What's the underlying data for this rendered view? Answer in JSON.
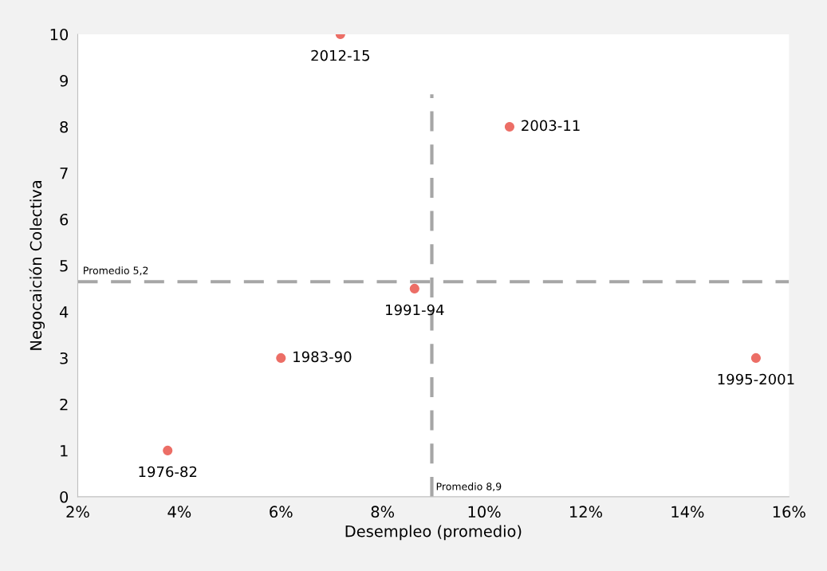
{
  "chart_data": {
    "type": "scatter",
    "xlabel": "Desempleo (promedio)",
    "ylabel": "Negocaición Colectiva",
    "x": [
      3.77,
      6.0,
      8.63,
      15.35,
      10.5,
      7.17
    ],
    "series": [
      {
        "color": "#ec6e66",
        "values": [
          1,
          3,
          4.5,
          3,
          8,
          10
        ]
      }
    ],
    "annotations": [
      {
        "text": "1976-82",
        "x": 3.77,
        "y": 1
      },
      {
        "text": "1983-90",
        "x": 6.0,
        "y": 3
      },
      {
        "text": "1991-94",
        "x": 8.63,
        "y": 4.5
      },
      {
        "text": "1995-2001",
        "x": 15.35,
        "y": 3
      },
      {
        "text": "2003-11",
        "x": 10.5,
        "y": 8
      },
      {
        "text": "2012-15",
        "x": 7.17,
        "y": 10
      }
    ],
    "xlim": [
      2,
      16
    ],
    "xticks": [
      {
        "value": 2,
        "label": "2%"
      },
      {
        "value": 4,
        "label": "4%"
      },
      {
        "value": 6,
        "label": "6%"
      },
      {
        "value": 8,
        "label": "8%"
      },
      {
        "value": 10,
        "label": "10%"
      },
      {
        "value": 12,
        "label": "12%"
      },
      {
        "value": 14,
        "label": "14%"
      },
      {
        "value": 16,
        "label": "16%"
      }
    ],
    "ylim": [
      0,
      10
    ],
    "yticks": [
      0,
      1,
      2,
      3,
      4,
      5,
      6,
      7,
      8,
      9,
      10
    ],
    "ref_lines": [
      {
        "axis": "y",
        "value": 4.65,
        "label": "Promedio 5,2",
        "color": "#a6a6a6",
        "line_style": "dashed"
      },
      {
        "axis": "x",
        "value": 8.97,
        "label": "Promedio 8,9",
        "color": "#a6a6a6",
        "line_style": "dashed"
      }
    ],
    "grid": false,
    "legend": false,
    "marker": "circle"
  }
}
